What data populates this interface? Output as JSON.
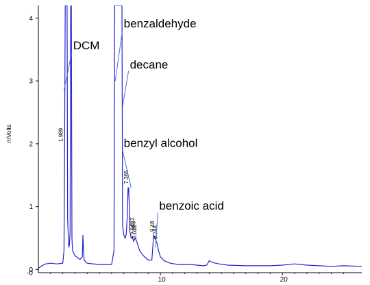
{
  "chart_data": {
    "type": "line",
    "ylabel": "mVolts",
    "xlim": [
      0,
      26.5
    ],
    "ylim": [
      -0.05,
      4.2
    ],
    "x_ticks": [
      10,
      20
    ],
    "y_ticks": [
      0,
      1,
      2,
      3,
      4
    ],
    "y_tick_labels": [
      "0",
      "1",
      "2",
      "3",
      "4"
    ],
    "x_tick_labels": [
      "10",
      "20"
    ],
    "series": [
      {
        "color": "#2222cc",
        "x": [
          0,
          0.3,
          0.6,
          1.0,
          1.5,
          2.0,
          2.1,
          2.15,
          2.2,
          2.25,
          2.35,
          2.4,
          2.45,
          2.5,
          2.55,
          2.6,
          2.65,
          2.7,
          2.75,
          2.8,
          3.0,
          3.4,
          3.6,
          3.65,
          3.7,
          3.75,
          4.0,
          5.0,
          6.0,
          6.2,
          6.25,
          6.3,
          6.4,
          6.5,
          6.55,
          6.6,
          6.65,
          6.7,
          6.75,
          6.8,
          6.85,
          6.9,
          7.0,
          7.1,
          7.2,
          7.3,
          7.35,
          7.4,
          7.45,
          7.5,
          7.6,
          7.7,
          7.8,
          7.95,
          8.1,
          8.3,
          8.6,
          9.0,
          9.3,
          9.45,
          9.55,
          9.65,
          9.75,
          9.85,
          10.0,
          10.3,
          10.8,
          11.5,
          12.5,
          13.5,
          13.8,
          14.0,
          14.3,
          14.8,
          15.5,
          17,
          18,
          19,
          20,
          21,
          22,
          23,
          24,
          25,
          26.5
        ],
        "y": [
          0.02,
          0.06,
          0.09,
          0.1,
          0.09,
          0.1,
          0.3,
          2.0,
          4.2,
          4.2,
          4.2,
          0.8,
          0.55,
          0.35,
          0.4,
          0.6,
          4.2,
          4.2,
          0.5,
          0.3,
          0.22,
          0.16,
          0.2,
          0.55,
          0.3,
          0.15,
          0.1,
          0.08,
          0.08,
          0.3,
          4.2,
          4.2,
          4.2,
          4.2,
          4.2,
          4.2,
          4.2,
          4.2,
          4.2,
          4.2,
          4.2,
          0.7,
          0.55,
          0.5,
          0.55,
          0.9,
          1.3,
          1.3,
          1.0,
          0.6,
          0.5,
          0.52,
          0.45,
          0.5,
          0.42,
          0.3,
          0.22,
          0.15,
          0.15,
          0.55,
          0.5,
          0.45,
          0.4,
          0.3,
          0.2,
          0.14,
          0.1,
          0.08,
          0.08,
          0.06,
          0.07,
          0.14,
          0.11,
          0.09,
          0.07,
          0.06,
          0.06,
          0.06,
          0.07,
          0.09,
          0.07,
          0.06,
          0.05,
          0.06,
          0.05
        ]
      }
    ],
    "retention_labels": [
      {
        "text": "1.989",
        "x": 2.0,
        "y": 2.0
      },
      {
        "text": "7.365",
        "x": 7.36,
        "y": 1.33
      },
      {
        "text": "7.822",
        "x": 7.82,
        "y": 0.58
      },
      {
        "text": "7.953",
        "x": 7.95,
        "y": 0.52
      },
      {
        "text": "8.022",
        "x": 8.02,
        "y": 0.46
      },
      {
        "text": "9.48",
        "x": 9.48,
        "y": 0.57
      },
      {
        "text": "9.748",
        "x": 9.75,
        "y": 0.45
      }
    ],
    "annotations": [
      {
        "text": "DCM",
        "x": 2.85,
        "y": 3.5,
        "arrow_to": [
          2.1,
          2.85
        ]
      },
      {
        "text": "benzaldehyde",
        "x": 7.0,
        "y": 3.85,
        "arrow_to": [
          6.3,
          3.0
        ]
      },
      {
        "text": "decane",
        "x": 7.5,
        "y": 3.2,
        "arrow_to": [
          6.9,
          2.6
        ]
      },
      {
        "text": "benzyl alcohol",
        "x": 7.0,
        "y": 1.95,
        "arrow_to": [
          7.6,
          1.3
        ]
      },
      {
        "text": "benzoic acid",
        "x": 9.9,
        "y": 0.95,
        "arrow_to": [
          9.6,
          0.35
        ]
      }
    ]
  }
}
